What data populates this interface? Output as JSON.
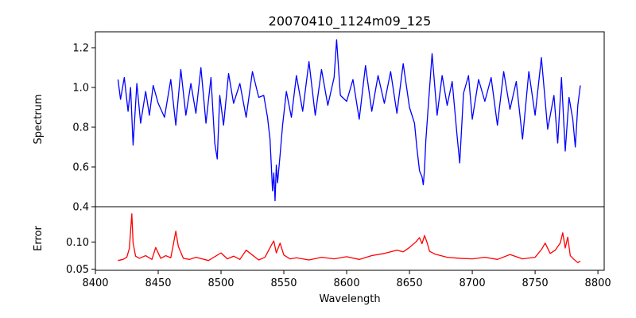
{
  "chart_data": {
    "type": "line",
    "title": "20070410_1124m09_125",
    "xlabel": "Wavelength",
    "xlim": [
      8400,
      8805
    ],
    "x_ticks": [
      8400,
      8450,
      8500,
      8550,
      8600,
      8650,
      8700,
      8750,
      8800
    ],
    "panels": [
      {
        "name": "spectrum",
        "ylabel": "Spectrum",
        "ylim": [
          0.4,
          1.28
        ],
        "y_ticks": [
          0.4,
          0.6,
          0.8,
          1.0,
          1.2
        ],
        "y_tick_labels": [
          "0.4",
          "0.6",
          "0.8",
          "1.0",
          "1.2"
        ],
        "color": "#0000ff",
        "x": [
          8418,
          8420,
          8423,
          8426,
          8428,
          8430,
          8433,
          8436,
          8440,
          8443,
          8446,
          8450,
          8455,
          8460,
          8464,
          8468,
          8472,
          8476,
          8480,
          8484,
          8488,
          8492,
          8495,
          8497,
          8499,
          8502,
          8506,
          8510,
          8515,
          8520,
          8525,
          8530,
          8534,
          8537,
          8539,
          8540,
          8541,
          8542,
          8543,
          8544,
          8545,
          8547,
          8549,
          8552,
          8556,
          8560,
          8565,
          8570,
          8575,
          8580,
          8585,
          8590,
          8592,
          8595,
          8600,
          8605,
          8610,
          8615,
          8620,
          8625,
          8630,
          8635,
          8640,
          8645,
          8650,
          8654,
          8656,
          8658,
          8660,
          8661,
          8662,
          8663,
          8665,
          8668,
          8672,
          8676,
          8680,
          8684,
          8688,
          8690,
          8693,
          8697,
          8700,
          8705,
          8710,
          8715,
          8720,
          8725,
          8730,
          8735,
          8740,
          8745,
          8750,
          8755,
          8760,
          8765,
          8768,
          8771,
          8774,
          8777,
          8780,
          8782,
          8784,
          8786
        ],
        "y": [
          1.04,
          0.94,
          1.05,
          0.88,
          1.0,
          0.71,
          1.02,
          0.82,
          0.98,
          0.86,
          1.01,
          0.92,
          0.85,
          1.04,
          0.81,
          1.09,
          0.86,
          1.02,
          0.87,
          1.1,
          0.82,
          1.05,
          0.72,
          0.64,
          0.96,
          0.81,
          1.07,
          0.92,
          1.02,
          0.85,
          1.08,
          0.95,
          0.96,
          0.85,
          0.74,
          0.61,
          0.48,
          0.57,
          0.43,
          0.61,
          0.52,
          0.66,
          0.81,
          0.98,
          0.85,
          1.06,
          0.88,
          1.13,
          0.86,
          1.09,
          0.91,
          1.05,
          1.24,
          0.96,
          0.93,
          1.04,
          0.84,
          1.11,
          0.88,
          1.06,
          0.92,
          1.08,
          0.87,
          1.12,
          0.9,
          0.82,
          0.69,
          0.58,
          0.55,
          0.51,
          0.59,
          0.73,
          0.91,
          1.17,
          0.86,
          1.06,
          0.91,
          1.03,
          0.75,
          0.62,
          0.97,
          1.06,
          0.84,
          1.04,
          0.93,
          1.05,
          0.81,
          1.08,
          0.89,
          1.03,
          0.74,
          1.08,
          0.86,
          1.15,
          0.79,
          0.96,
          0.72,
          1.05,
          0.68,
          0.95,
          0.84,
          0.7,
          0.91,
          1.01
        ]
      },
      {
        "name": "error",
        "ylabel": "Error",
        "ylim": [
          0.048,
          0.165
        ],
        "y_ticks": [
          0.05,
          0.1
        ],
        "y_tick_labels": [
          "0.05",
          "0.10"
        ],
        "color": "#ff0000",
        "x": [
          8418,
          8422,
          8425,
          8427,
          8429,
          8430,
          8432,
          8435,
          8440,
          8445,
          8448,
          8452,
          8456,
          8460,
          8462,
          8464,
          8466,
          8470,
          8475,
          8480,
          8490,
          8500,
          8505,
          8510,
          8515,
          8520,
          8530,
          8535,
          8540,
          8542,
          8544,
          8547,
          8550,
          8555,
          8560,
          8570,
          8580,
          8590,
          8600,
          8610,
          8620,
          8630,
          8640,
          8645,
          8650,
          8655,
          8658,
          8660,
          8662,
          8664,
          8666,
          8670,
          8680,
          8690,
          8700,
          8710,
          8720,
          8730,
          8740,
          8750,
          8755,
          8758,
          8762,
          8766,
          8770,
          8772,
          8774,
          8776,
          8778,
          8781,
          8784,
          8786
        ],
        "y": [
          0.066,
          0.068,
          0.072,
          0.088,
          0.152,
          0.098,
          0.074,
          0.07,
          0.075,
          0.068,
          0.09,
          0.07,
          0.075,
          0.071,
          0.095,
          0.12,
          0.092,
          0.07,
          0.068,
          0.072,
          0.066,
          0.08,
          0.069,
          0.074,
          0.068,
          0.085,
          0.067,
          0.072,
          0.094,
          0.102,
          0.08,
          0.098,
          0.076,
          0.069,
          0.071,
          0.067,
          0.072,
          0.069,
          0.073,
          0.068,
          0.075,
          0.079,
          0.085,
          0.082,
          0.09,
          0.1,
          0.108,
          0.097,
          0.112,
          0.099,
          0.083,
          0.078,
          0.072,
          0.07,
          0.069,
          0.072,
          0.068,
          0.077,
          0.069,
          0.072,
          0.086,
          0.098,
          0.079,
          0.085,
          0.098,
          0.117,
          0.089,
          0.109,
          0.075,
          0.068,
          0.062,
          0.065
        ]
      }
    ]
  }
}
